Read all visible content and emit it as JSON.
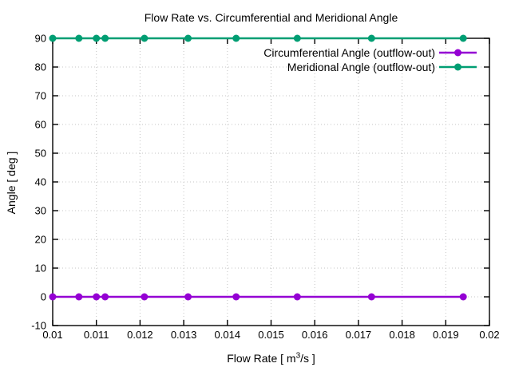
{
  "window": {
    "background": "#ffffff"
  },
  "chart_data": {
    "type": "line",
    "title": "Flow Rate vs. Circumferential and Meridional Angle",
    "xlabel": "Flow Rate [ m³/s ]",
    "xlabel_parts": [
      "Flow Rate [ m",
      "3",
      "/s ]"
    ],
    "ylabel": "Angle [ deg ]",
    "xlim": [
      0.01,
      0.02
    ],
    "ylim": [
      -10,
      90
    ],
    "x_ticks": [
      0.01,
      0.011,
      0.012,
      0.013,
      0.014,
      0.015,
      0.016,
      0.017,
      0.018,
      0.019,
      0.02
    ],
    "x_tick_labels": [
      "0.01",
      "0.011",
      "0.012",
      "0.013",
      "0.014",
      "0.015",
      "0.016",
      "0.017",
      "0.018",
      "0.019",
      "0.02"
    ],
    "y_ticks": [
      -10,
      0,
      10,
      20,
      30,
      40,
      50,
      60,
      70,
      80,
      90
    ],
    "y_tick_labels": [
      "-10",
      "0",
      "10",
      "20",
      "30",
      "40",
      "50",
      "60",
      "70",
      "80",
      "90"
    ],
    "grid": true,
    "legend_position": "top-right-inside",
    "marker": "circle",
    "x": [
      0.01,
      0.0106,
      0.011,
      0.0112,
      0.0121,
      0.0131,
      0.0142,
      0.0156,
      0.0173,
      0.0194
    ],
    "series": [
      {
        "name": "Circumferential Angle (outflow-out)",
        "color": "#9400d3",
        "values": [
          0,
          0,
          0,
          0,
          0,
          0,
          0,
          0,
          0,
          0
        ]
      },
      {
        "name": "Meridional Angle (outflow-out)",
        "color": "#009e73",
        "values": [
          90,
          90,
          90,
          90,
          90,
          90,
          90,
          90,
          90,
          90
        ]
      }
    ],
    "colors": {
      "grid": "#c4c4c4",
      "axis": "#000000",
      "text": "#000000"
    }
  }
}
